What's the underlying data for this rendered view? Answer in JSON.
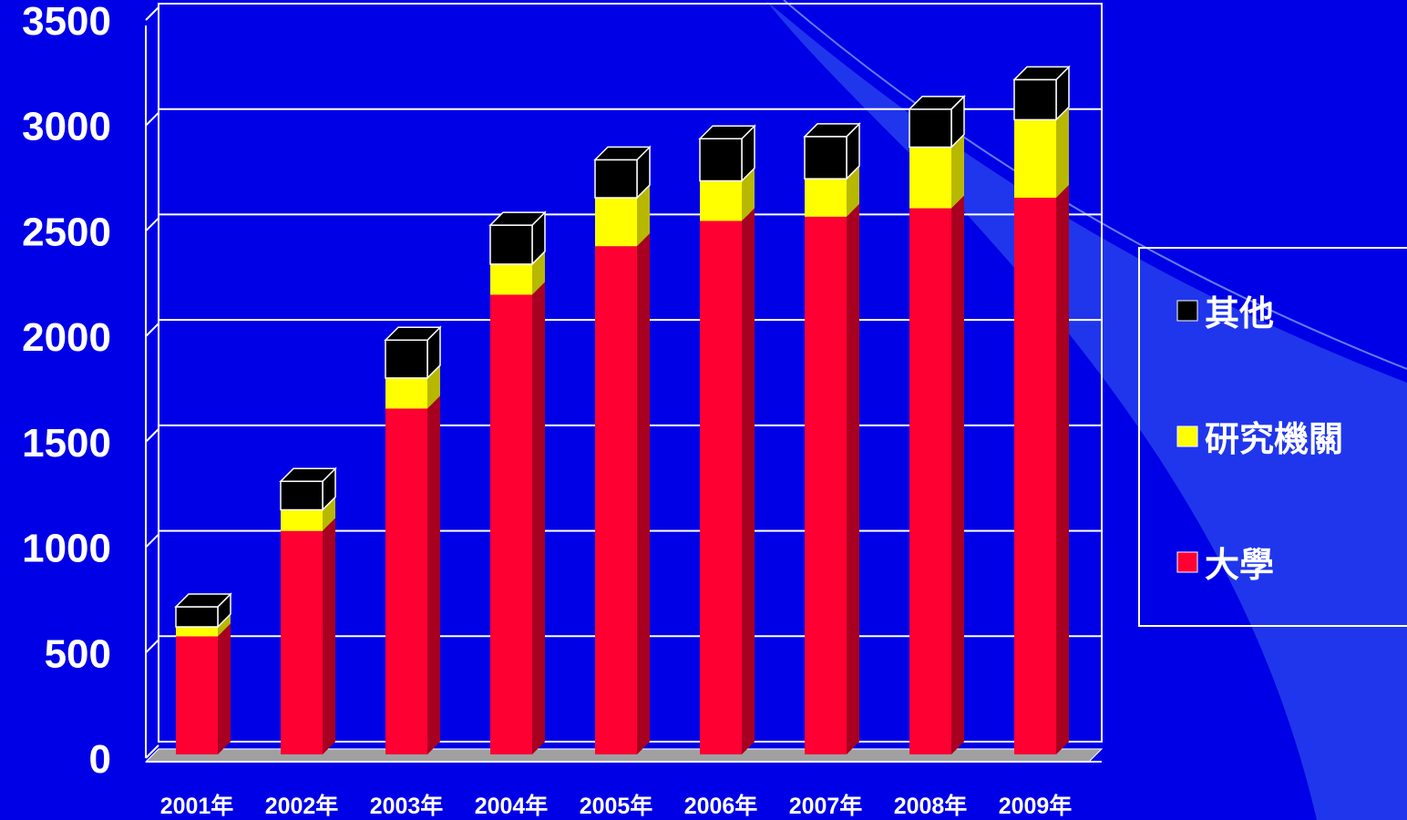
{
  "colors": {
    "background": "#0000e6",
    "panel_line": "#ffffff",
    "floor": "#a0a0a0",
    "series": {
      "大學": {
        "front": "#ff0033",
        "side": "#a80020",
        "top": "#ff4060"
      },
      "研究機關": {
        "front": "#ffff00",
        "side": "#b8b800",
        "top": "#ffff66"
      },
      "其他": {
        "front": "#000000",
        "side": "#000000",
        "top": "#000000"
      }
    }
  },
  "chart_data": {
    "type": "bar",
    "stacked": true,
    "three_d": true,
    "title": "",
    "xlabel": "",
    "ylabel": "",
    "ylim": [
      0,
      3500
    ],
    "yticks": [
      0,
      500,
      1000,
      1500,
      2000,
      2500,
      3000,
      3500
    ],
    "grid": true,
    "legend_position": "right",
    "categories": [
      "2001年",
      "2002年",
      "2003年",
      "2004年",
      "2005年",
      "2006年",
      "2007年",
      "2008年",
      "2009年"
    ],
    "series": [
      {
        "name": "大學",
        "values": [
          560,
          1060,
          1640,
          2180,
          2410,
          2530,
          2550,
          2590,
          2640
        ]
      },
      {
        "name": "研究機關",
        "values": [
          45,
          100,
          145,
          145,
          230,
          190,
          180,
          290,
          370
        ]
      },
      {
        "name": "其他",
        "values": [
          95,
          135,
          180,
          185,
          180,
          200,
          200,
          180,
          190
        ]
      }
    ],
    "legend": [
      "其他",
      "研究機關",
      "大學"
    ]
  }
}
